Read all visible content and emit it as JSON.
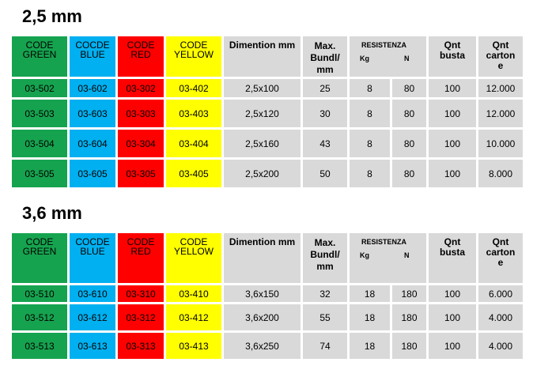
{
  "sections": [
    {
      "title": "2,5 mm",
      "headers": {
        "code_green": [
          "CODE",
          "GREEN"
        ],
        "code_blue": [
          "COCDE",
          "BLUE"
        ],
        "code_red": [
          "CODE",
          "RED"
        ],
        "code_yellow": [
          "CODE",
          "YELLOW"
        ],
        "dimension": "Dimention mm",
        "max_bundle": [
          "Max.",
          "Bundl/",
          "mm"
        ],
        "resistance": "RESISTENZA",
        "resistance_kg": "Kg",
        "resistance_n": "N",
        "qnt_busta": [
          "Qnt",
          "busta"
        ],
        "qnt_carton": [
          "Qnt",
          "carton",
          "e"
        ]
      },
      "rows": [
        {
          "green": "03-502",
          "blue": "03-602",
          "red": "03-302",
          "yellow": "03-402",
          "dim": "2,5x100",
          "max": "25",
          "kg": "8",
          "n": "80",
          "busta": "100",
          "carton": "12.000"
        },
        {
          "green": "03-503",
          "blue": "03-603",
          "red": "03-303",
          "yellow": "03-403",
          "dim": "2,5x120",
          "max": "30",
          "kg": "8",
          "n": "80",
          "busta": "100",
          "carton": "12.000"
        },
        {
          "green": "03-504",
          "blue": "03-604",
          "red": "03-304",
          "yellow": "03-404",
          "dim": "2,5x160",
          "max": "43",
          "kg": "8",
          "n": "80",
          "busta": "100",
          "carton": "10.000"
        },
        {
          "green": "03-505",
          "blue": "03-605",
          "red": "03-305",
          "yellow": "03-405",
          "dim": "2,5x200",
          "max": "50",
          "kg": "8",
          "n": "80",
          "busta": "100",
          "carton": "8.000"
        }
      ]
    },
    {
      "title": "3,6 mm",
      "headers": {
        "code_green": [
          "CODE",
          "GREEN"
        ],
        "code_blue": [
          "COCDE",
          "BLUE"
        ],
        "code_red": [
          "CODE",
          "RED"
        ],
        "code_yellow": [
          "CODE",
          "YELLOW"
        ],
        "dimension": "Dimention mm",
        "max_bundle": [
          "Max.",
          "Bundl/",
          "mm"
        ],
        "resistance": "RESISTENZA",
        "resistance_kg": "Kg",
        "resistance_n": "N",
        "qnt_busta": [
          "Qnt",
          "busta"
        ],
        "qnt_carton": [
          "Qnt",
          "carton",
          "e"
        ]
      },
      "rows": [
        {
          "green": "03-510",
          "blue": "03-610",
          "red": "03-310",
          "yellow": "03-410",
          "dim": "3,6x150",
          "max": "32",
          "kg": "18",
          "n": "180",
          "busta": "100",
          "carton": "6.000"
        },
        {
          "green": "03-512",
          "blue": "03-612",
          "red": "03-312",
          "yellow": "03-412",
          "dim": "3,6x200",
          "max": "55",
          "kg": "18",
          "n": "180",
          "busta": "100",
          "carton": "4.000"
        },
        {
          "green": "03-513",
          "blue": "03-613",
          "red": "03-313",
          "yellow": "03-413",
          "dim": "3,6x250",
          "max": "74",
          "kg": "18",
          "n": "180",
          "busta": "100",
          "carton": "4.000"
        }
      ]
    }
  ],
  "colors": {
    "green": "#16a34f",
    "blue": "#00b0f0",
    "red": "#ff0000",
    "yellow": "#ffff00",
    "gray": "#d9d9d9"
  }
}
